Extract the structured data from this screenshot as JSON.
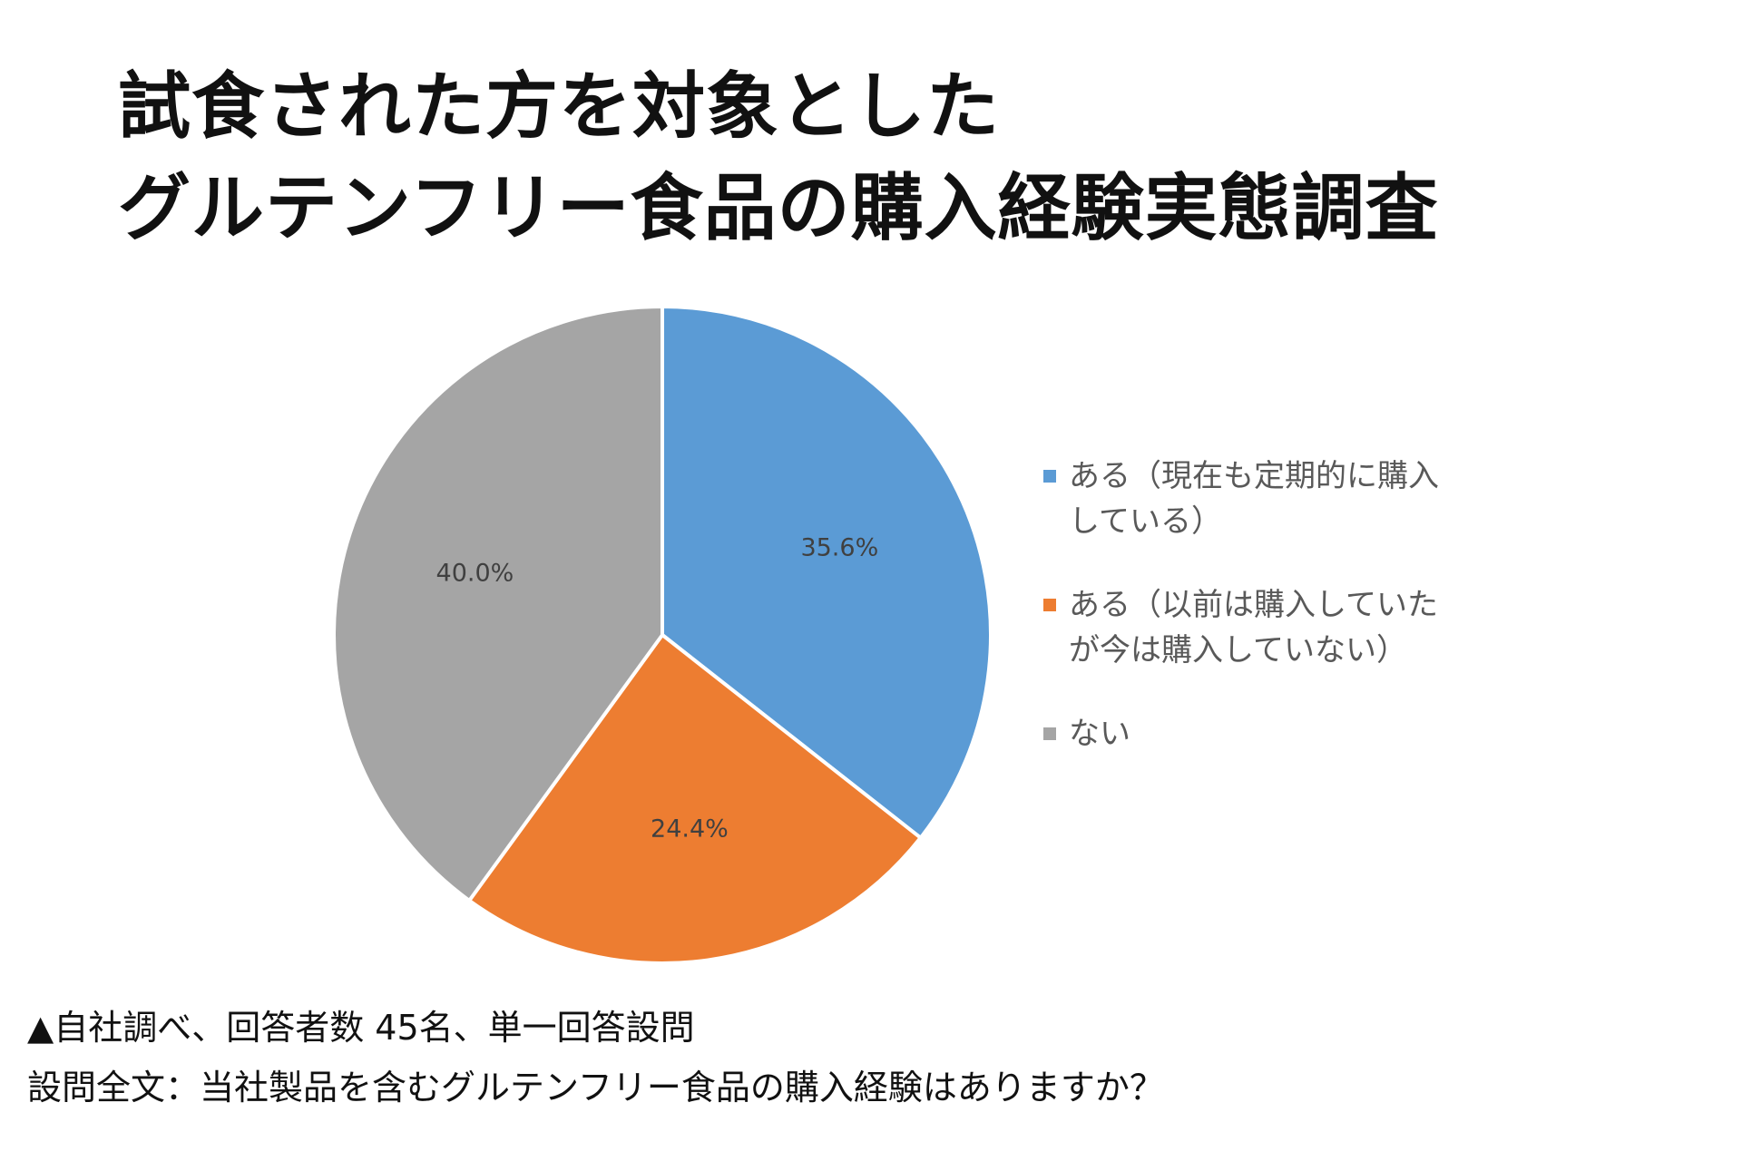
{
  "title_lines": [
    "試食された方を対象とした",
    "グルテンフリー食品の購入経験実態調査"
  ],
  "chart_data": {
    "type": "pie",
    "slices": [
      {
        "label": "ある（現在も定期的に購入している）",
        "value": 35.6,
        "data_label": "35.6%",
        "color": "#5B9BD5"
      },
      {
        "label": "ある（以前は購入していたが今は購入していない）",
        "value": 24.4,
        "data_label": "24.4%",
        "color": "#ED7D31"
      },
      {
        "label": "ない",
        "value": 40.0,
        "data_label": "40.0%",
        "color": "#A5A5A5"
      }
    ],
    "start_angle": "12 o'clock, clockwise",
    "legend_position": "right"
  },
  "legend": {
    "items": [
      {
        "lines": [
          "ある（現在も定期的に購入",
          "している）"
        ],
        "color": "#5B9BD5"
      },
      {
        "lines": [
          "ある（以前は購入していた",
          "が今は購入していない）"
        ],
        "color": "#ED7D31"
      },
      {
        "lines": [
          "ない"
        ],
        "color": "#A5A5A5"
      }
    ]
  },
  "footer": {
    "line1": "▲自社調べ、回答者数 45名、単一回答設問",
    "line2": "設問全文：当社製品を含むグルテンフリー食品の購入経験はありますか？"
  }
}
